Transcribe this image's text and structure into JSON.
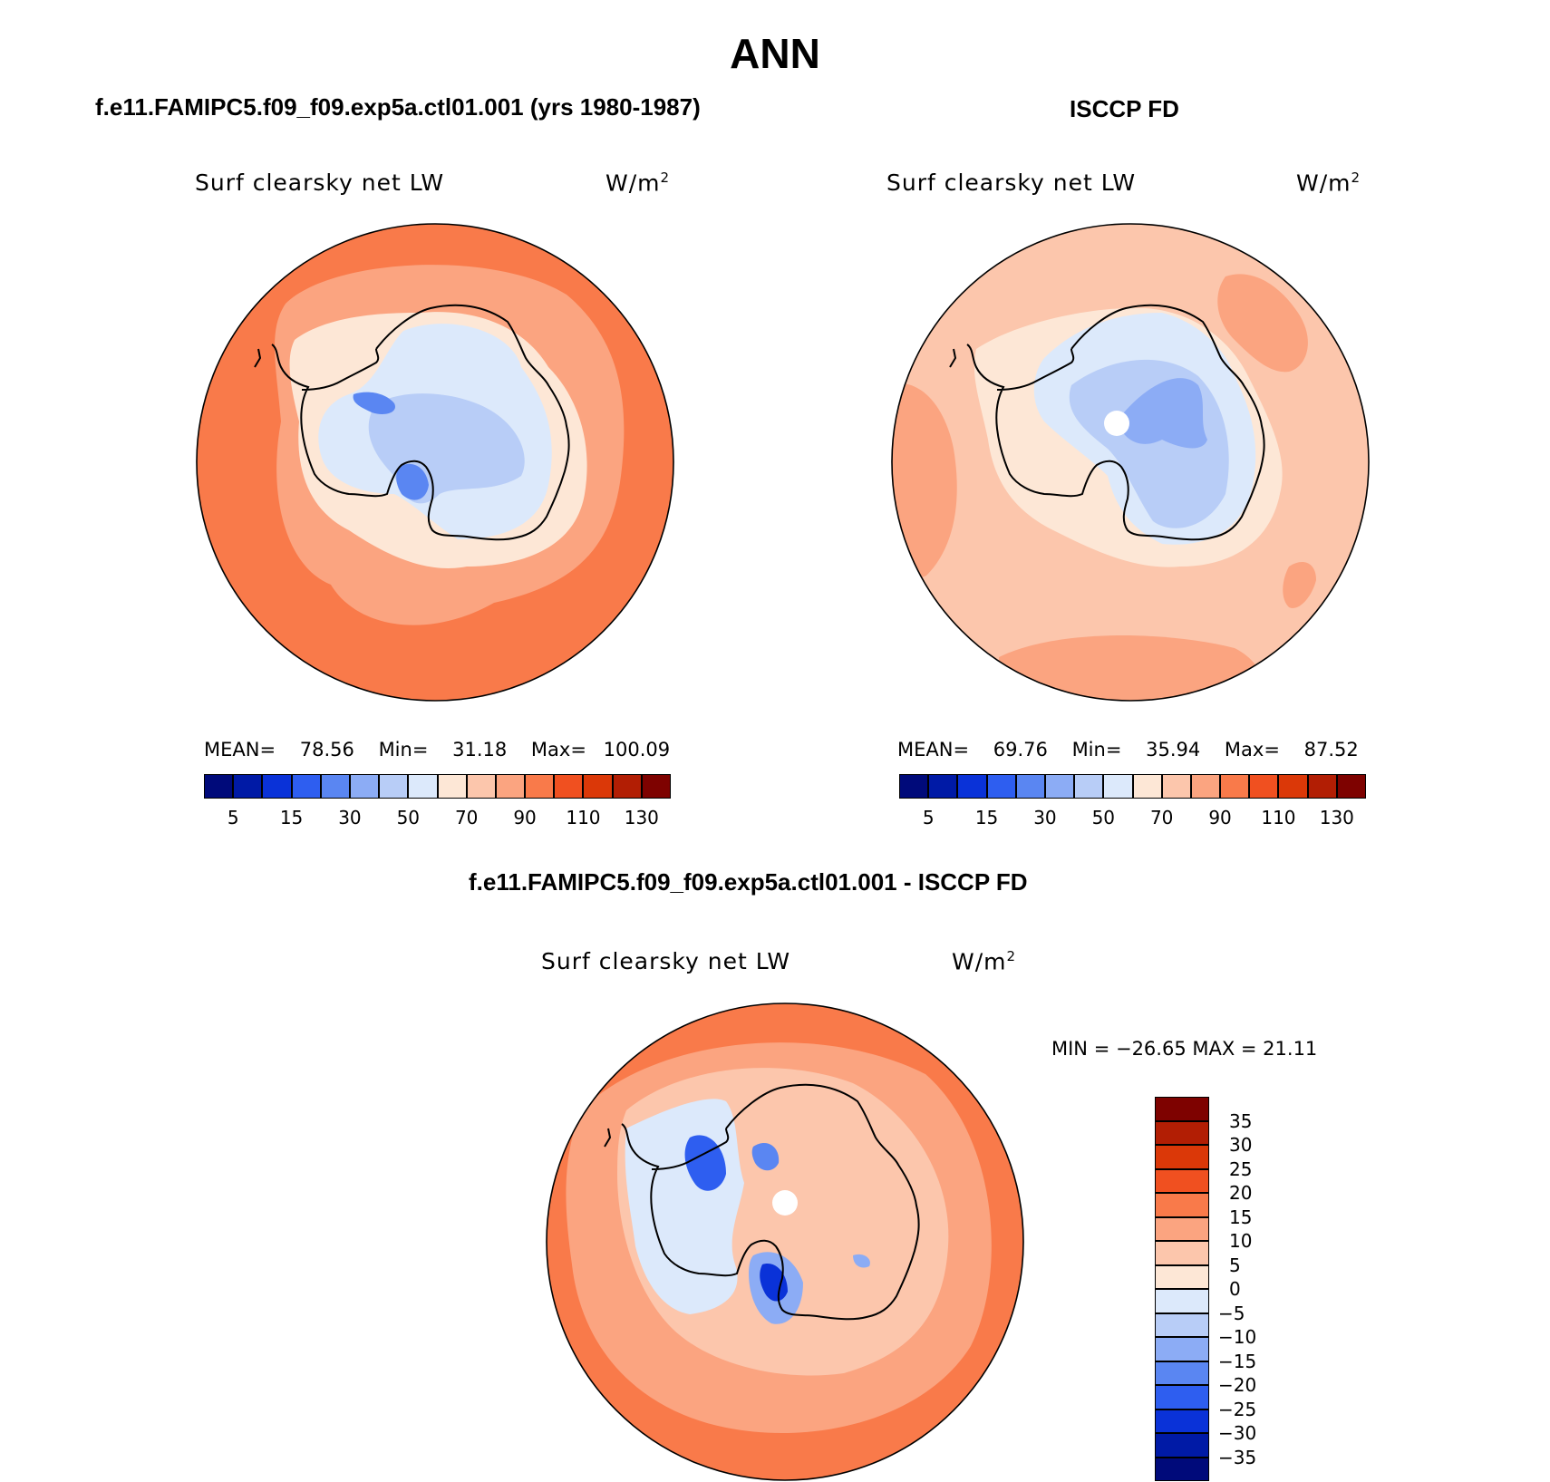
{
  "figure": {
    "title": "ANN",
    "variable": "Surf clearsky net LW",
    "units_base": "W/m",
    "units_exp": "2"
  },
  "panels": {
    "model": {
      "title": "f.e11.FAMIPC5.f09_f09.exp5a.ctl01.001 (yrs 1980-1987)",
      "stats": {
        "mean_label": "MEAN=",
        "mean": "78.56",
        "min_label": "Min=",
        "min": "31.18",
        "max_label": "Max=",
        "max": "100.09"
      }
    },
    "obs": {
      "title": "ISCCP FD",
      "stats": {
        "mean_label": "MEAN=",
        "mean": "69.76",
        "min_label": "Min=",
        "min": "35.94",
        "max_label": "Max=",
        "max": "87.52"
      }
    },
    "diff": {
      "title": "f.e11.FAMIPC5.f09_f09.exp5a.ctl01.001 - ISCCP FD",
      "stats_text": "MIN = −26.65 MAX =  21.11"
    }
  },
  "colorbars": {
    "abs": {
      "colors": [
        "#000a7a",
        "#001aa6",
        "#0a32d8",
        "#2e5ef0",
        "#5a86f2",
        "#8cacf5",
        "#b8cdf7",
        "#dce9fb",
        "#fde7d6",
        "#fcc6ac",
        "#fba480",
        "#f97a4a",
        "#f05020",
        "#db3808",
        "#b21e04",
        "#7e0200"
      ],
      "tick_labels": [
        "5",
        "15",
        "30",
        "50",
        "70",
        "90",
        "110",
        "130"
      ]
    },
    "diff": {
      "colors": [
        "#7e0200",
        "#b21e04",
        "#db3808",
        "#f05020",
        "#f97a4a",
        "#fba480",
        "#fcc6ac",
        "#fde7d6",
        "#dce9fb",
        "#b8cdf7",
        "#8cacf5",
        "#5a86f2",
        "#2e5ef0",
        "#0a32d8",
        "#001aa6",
        "#000a7a"
      ],
      "tick_labels": [
        "35",
        "30",
        "25",
        "20",
        "15",
        "10",
        "5",
        "0",
        "−5",
        "−10",
        "−15",
        "−20",
        "−25",
        "−30",
        "−35"
      ]
    }
  },
  "palette": {
    "ocean_model": "#f97a4a",
    "ocean_model_inner": "#fba480",
    "ocean_obs": "#fcc6ac",
    "ocean_obs_accent": "#fba480",
    "coast_band": "#fde7d6",
    "interior_light": "#dce9fb",
    "interior_mid": "#b8cdf7",
    "interior_dark": "#8cacf5",
    "interior_deep": "#5a86f2",
    "diff_neg_strong": "#2e5ef0",
    "diff_neg_deep": "#0a32d8"
  }
}
